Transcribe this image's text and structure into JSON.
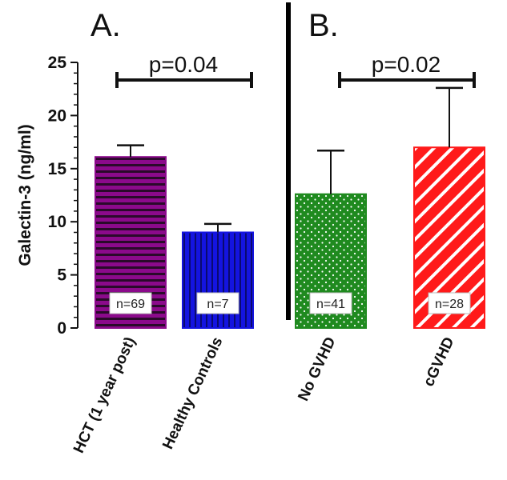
{
  "chart_data": {
    "type": "bar",
    "ylabel": "Galectin-3 (ng/ml)",
    "ylim": [
      0,
      25
    ],
    "yticks": [
      "0",
      "5",
      "10",
      "15",
      "20",
      "25"
    ],
    "panels": [
      {
        "label": "A.",
        "p_value": "p=0.04",
        "compare": [
          0,
          1
        ]
      },
      {
        "label": "B.",
        "p_value": "p=0.02",
        "compare": [
          2,
          3
        ]
      }
    ],
    "categories": [
      "HCT (1 year post)",
      "Healthy Controls",
      "No GVHD",
      "cGVHD"
    ],
    "values": [
      16.1,
      9.0,
      12.6,
      17.0
    ],
    "errors": [
      1.1,
      0.8,
      4.1,
      5.6
    ],
    "n_labels": [
      "n=69",
      "n=7",
      "n=41",
      "n=28"
    ],
    "colors": [
      "#8b0a8b",
      "#1414e0",
      "#1f8a1f",
      "#ff1a1a"
    ],
    "patterns": [
      "horizontal-stripes",
      "vertical-stripes",
      "dots",
      "diagonal-stripes"
    ],
    "grid": false
  }
}
